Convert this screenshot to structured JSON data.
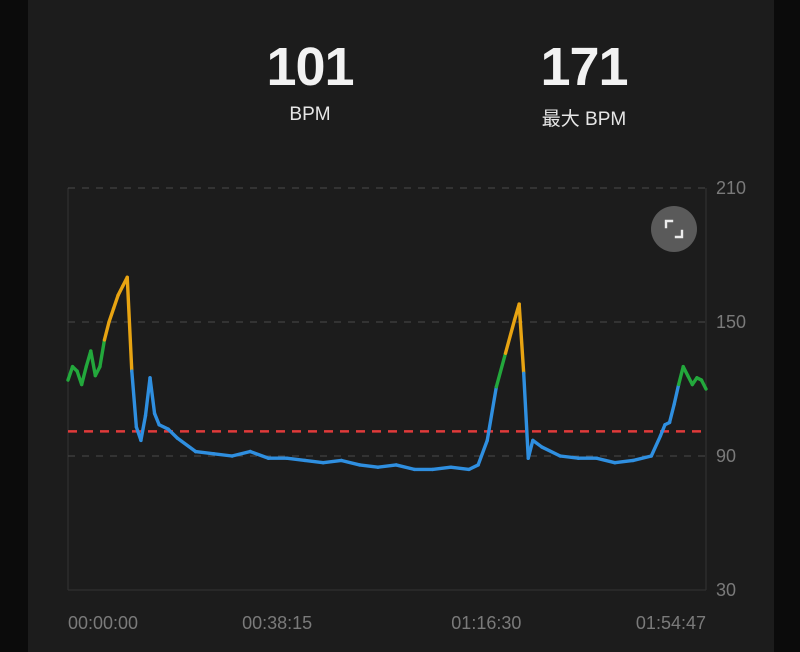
{
  "stats": {
    "average": {
      "value": "101",
      "label": "BPM"
    },
    "max": {
      "value": "171",
      "label": "最大 BPM"
    }
  },
  "icons": {
    "expand": "expand-icon"
  },
  "colors": {
    "background": "#1c1c1c",
    "line_low": "#2f8fe0",
    "line_mid": "#23a83c",
    "line_high": "#e8a412",
    "reference_line": "#e03a3a",
    "grid": "#4a4a4a",
    "tick_text": "#7a7a7a"
  },
  "chart_data": {
    "type": "line",
    "title": "",
    "xlabel": "",
    "ylabel": "",
    "ylim": [
      30,
      210
    ],
    "xlim_seconds": [
      0,
      7000
    ],
    "y_ticks": [
      "210",
      "150",
      "90",
      "30"
    ],
    "y_tick_values": [
      210,
      150,
      90,
      30
    ],
    "x_ticks": [
      "00:00:00",
      "00:38:15",
      "01:16:30",
      "01:54:47"
    ],
    "x_tick_values_seconds": [
      0,
      2295,
      4590,
      6887
    ],
    "reference_line": 101,
    "grid": "dashed horizontal",
    "color_zones": [
      {
        "max": 120,
        "color": "#2f8fe0"
      },
      {
        "max": 138,
        "color": "#23a83c"
      },
      {
        "max": 999,
        "color": "#e8a412"
      }
    ],
    "series": [
      {
        "x_seconds": [
          0,
          50,
          100,
          150,
          200,
          250,
          300,
          350,
          400,
          450,
          500,
          550,
          600,
          650,
          700,
          750,
          800,
          850,
          900,
          950,
          1000,
          1100,
          1200,
          1400,
          1600,
          1800,
          2000,
          2200,
          2400,
          2600,
          2800,
          3000,
          3200,
          3400,
          3600,
          3800,
          4000,
          4200,
          4400,
          4500,
          4600,
          4700,
          4800,
          4900,
          4950,
          5000,
          5050,
          5100,
          5200,
          5400,
          5600,
          5800,
          6000,
          6200,
          6400,
          6500,
          6550,
          6600,
          6650,
          6700,
          6750,
          6800,
          6850,
          6900,
          6950,
          7000
        ],
        "values": [
          124,
          130,
          128,
          122,
          130,
          137,
          126,
          130,
          142,
          150,
          156,
          162,
          166,
          170,
          128,
          103,
          97,
          108,
          125,
          109,
          104,
          102,
          98,
          92,
          91,
          90,
          92,
          89,
          89,
          88,
          87,
          88,
          86,
          85,
          86,
          84,
          84,
          85,
          84,
          86,
          97,
          121,
          136,
          151,
          158,
          127,
          89,
          97,
          94,
          90,
          89,
          89,
          87,
          88,
          90,
          99,
          104,
          105,
          113,
          122,
          130,
          126,
          122,
          125,
          124,
          120
        ]
      }
    ]
  }
}
